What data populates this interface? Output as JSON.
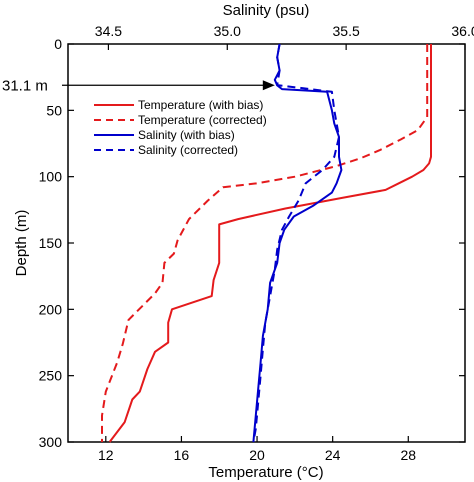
{
  "chart_data": {
    "type": "line",
    "x_bottom": {
      "label": "Temperature (°C)",
      "range": [
        10,
        31
      ],
      "ticks": [
        12,
        16,
        20,
        24,
        28
      ],
      "tick_labels": [
        "12",
        "16",
        "20",
        "24",
        "28"
      ]
    },
    "x_top": {
      "label": "Salinity (psu)",
      "range": [
        34.33,
        36.0
      ],
      "ticks": [
        34.5,
        35.0,
        35.5,
        36.0
      ],
      "tick_labels": [
        "34.5",
        "35.0",
        "35.5",
        "36.0"
      ]
    },
    "y": {
      "label": "Depth (m)",
      "range": [
        0,
        300
      ],
      "inverted": true,
      "ticks": [
        0,
        50,
        100,
        150,
        200,
        250,
        300
      ],
      "tick_labels": [
        "0",
        "50",
        "100",
        "150",
        "200",
        "250",
        "300"
      ]
    },
    "annotation": {
      "text": "31.1 m",
      "depth": 31.1
    },
    "legend": {
      "placement": "top-left-inside",
      "entries": [
        {
          "label": "Temperature (with bias)",
          "color": "#e41a1c",
          "dash": "solid"
        },
        {
          "label": "Temperature (corrected)",
          "color": "#e41a1c",
          "dash": "dashed"
        },
        {
          "label": "Salinity (with bias)",
          "color": "#0000cc",
          "dash": "solid"
        },
        {
          "label": "Salinity (corrected)",
          "color": "#0000cc",
          "dash": "dashed"
        }
      ]
    },
    "series": [
      {
        "name": "Temperature (with bias)",
        "axis": "bottom",
        "color": "#e41a1c",
        "dash": "solid",
        "points": [
          [
            29.2,
            0
          ],
          [
            29.2,
            50
          ],
          [
            29.2,
            85
          ],
          [
            29.1,
            90
          ],
          [
            28.8,
            95
          ],
          [
            28.2,
            100
          ],
          [
            27.5,
            105
          ],
          [
            26.8,
            110
          ],
          [
            24.5,
            116
          ],
          [
            21.5,
            124
          ],
          [
            19.0,
            132
          ],
          [
            18.0,
            136
          ],
          [
            18.0,
            165
          ],
          [
            17.7,
            178
          ],
          [
            17.6,
            190
          ],
          [
            15.5,
            200
          ],
          [
            15.3,
            210
          ],
          [
            15.3,
            225
          ],
          [
            14.6,
            232
          ],
          [
            14.2,
            245
          ],
          [
            13.8,
            262
          ],
          [
            13.4,
            268
          ],
          [
            13.0,
            285
          ],
          [
            12.2,
            300
          ]
        ]
      },
      {
        "name": "Temperature (corrected)",
        "axis": "bottom",
        "color": "#e41a1c",
        "dash": "dashed",
        "points": [
          [
            29.0,
            0
          ],
          [
            29.0,
            55
          ],
          [
            28.5,
            65
          ],
          [
            27.6,
            72
          ],
          [
            26.5,
            80
          ],
          [
            25.5,
            86
          ],
          [
            24.2,
            92
          ],
          [
            22.0,
            100
          ],
          [
            20.0,
            105
          ],
          [
            18.2,
            108
          ],
          [
            17.4,
            118
          ],
          [
            16.4,
            132
          ],
          [
            15.8,
            148
          ],
          [
            15.6,
            158
          ],
          [
            15.1,
            165
          ],
          [
            15.0,
            180
          ],
          [
            14.6,
            188
          ],
          [
            13.2,
            208
          ],
          [
            12.9,
            226
          ],
          [
            12.6,
            240
          ],
          [
            12.0,
            262
          ],
          [
            11.8,
            280
          ],
          [
            11.8,
            300
          ]
        ]
      },
      {
        "name": "Salinity (with bias)",
        "axis": "top",
        "color": "#0000cc",
        "dash": "solid",
        "points": [
          [
            35.22,
            0
          ],
          [
            35.21,
            10
          ],
          [
            35.22,
            20
          ],
          [
            35.2,
            27
          ],
          [
            35.21,
            31.1
          ],
          [
            35.23,
            34
          ],
          [
            35.42,
            36
          ],
          [
            35.44,
            50
          ],
          [
            35.45,
            60
          ],
          [
            35.47,
            70
          ],
          [
            35.47,
            85
          ],
          [
            35.48,
            95
          ],
          [
            35.46,
            105
          ],
          [
            35.44,
            112
          ],
          [
            35.36,
            122
          ],
          [
            35.28,
            130
          ],
          [
            35.24,
            140
          ],
          [
            35.22,
            150
          ],
          [
            35.21,
            165
          ],
          [
            35.18,
            180
          ],
          [
            35.17,
            200
          ],
          [
            35.15,
            220
          ],
          [
            35.14,
            240
          ],
          [
            35.13,
            260
          ],
          [
            35.12,
            280
          ],
          [
            35.11,
            300
          ]
        ]
      },
      {
        "name": "Salinity (corrected)",
        "axis": "top",
        "color": "#0000cc",
        "dash": "dashed",
        "points": [
          [
            35.22,
            0
          ],
          [
            35.21,
            10
          ],
          [
            35.22,
            20
          ],
          [
            35.21,
            31
          ],
          [
            35.44,
            36
          ],
          [
            35.45,
            50
          ],
          [
            35.47,
            70
          ],
          [
            35.45,
            85
          ],
          [
            35.4,
            95
          ],
          [
            35.33,
            105
          ],
          [
            35.3,
            118
          ],
          [
            35.26,
            130
          ],
          [
            35.23,
            140
          ],
          [
            35.21,
            155
          ],
          [
            35.2,
            170
          ],
          [
            35.18,
            190
          ],
          [
            35.16,
            210
          ],
          [
            35.15,
            230
          ],
          [
            35.14,
            250
          ],
          [
            35.13,
            270
          ],
          [
            35.12,
            290
          ],
          [
            35.11,
            300
          ]
        ]
      }
    ]
  }
}
